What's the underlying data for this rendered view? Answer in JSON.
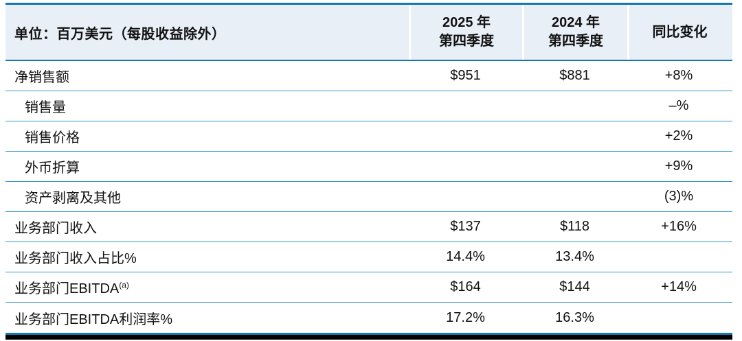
{
  "table": {
    "unit_header": "单位：百万美元（每股收益除外）",
    "col_headers": [
      {
        "line1": "2025 年",
        "line2": "第四季度"
      },
      {
        "line1": "2024 年",
        "line2": "第四季度"
      },
      {
        "line1": "同比变化",
        "line2": ""
      }
    ],
    "rows": [
      {
        "label": "净销售额",
        "sup": "",
        "indent": false,
        "q4_2025": "$951",
        "q4_2024": "$881",
        "yoy_change": "+8%"
      },
      {
        "label": "销售量",
        "sup": "",
        "indent": true,
        "q4_2025": "",
        "q4_2024": "",
        "yoy_change": "–%"
      },
      {
        "label": "销售价格",
        "sup": "",
        "indent": true,
        "q4_2025": "",
        "q4_2024": "",
        "yoy_change": "+2%"
      },
      {
        "label": "外币折算",
        "sup": "",
        "indent": true,
        "q4_2025": "",
        "q4_2024": "",
        "yoy_change": "+9%"
      },
      {
        "label": "资产剥离及其他",
        "sup": "",
        "indent": true,
        "q4_2025": "",
        "q4_2024": "",
        "yoy_change": "(3)%"
      },
      {
        "label": "业务部门收入",
        "sup": "",
        "indent": false,
        "q4_2025": "$137",
        "q4_2024": "$118",
        "yoy_change": "+16%"
      },
      {
        "label": "业务部门收入占比%",
        "sup": "",
        "indent": false,
        "q4_2025": "14.4%",
        "q4_2024": "13.4%",
        "yoy_change": ""
      },
      {
        "label": "业务部门EBITDA",
        "sup": "(a)",
        "indent": false,
        "q4_2025": "$164",
        "q4_2024": "$144",
        "yoy_change": "+14%"
      },
      {
        "label": "业务部门EBITDA利润率%",
        "sup": "",
        "indent": false,
        "q4_2025": "17.2%",
        "q4_2024": "16.3%",
        "yoy_change": ""
      }
    ]
  },
  "colors": {
    "accent_blue": "#1478b1",
    "row_line_blue": "#2f94c7",
    "header_bg": "#e9eff7",
    "header_separator_white": "#ffffff",
    "bottom_bar_black": "#000000",
    "text": "#111111"
  }
}
